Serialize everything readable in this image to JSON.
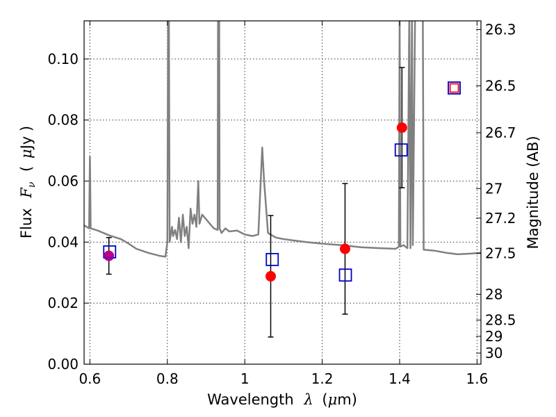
{
  "chart_data": {
    "type": "scatter",
    "xlabel_text": "Wavelength",
    "xlabel_symbol": "λ",
    "xlabel_unit_open": "(",
    "xlabel_unit_mu": "μ",
    "xlabel_unit_rest": "m)",
    "ylabel_text": "Flux",
    "ylabel_symbol": "F",
    "ylabel_subscript": "ν",
    "ylabel_unit_open": "(",
    "ylabel_unit_mu": "μ",
    "ylabel_unit_rest": "Jy )",
    "y2label": "Magnitude (AB)",
    "xlim": [
      0.585,
      1.61
    ],
    "ylim": [
      0.0,
      0.1125
    ],
    "grid": true,
    "x_ticks": [
      {
        "value": 0.6,
        "label": "0.6"
      },
      {
        "value": 0.8,
        "label": "0.8"
      },
      {
        "value": 1.0,
        "label": "1"
      },
      {
        "value": 1.2,
        "label": "1.2"
      },
      {
        "value": 1.4,
        "label": "1.4"
      },
      {
        "value": 1.6,
        "label": "1.6"
      }
    ],
    "y_ticks": [
      {
        "value": 0.0,
        "label": "0.00"
      },
      {
        "value": 0.02,
        "label": "0.02"
      },
      {
        "value": 0.04,
        "label": "0.04"
      },
      {
        "value": 0.06,
        "label": "0.06"
      },
      {
        "value": 0.08,
        "label": "0.08"
      },
      {
        "value": 0.1,
        "label": "0.10"
      }
    ],
    "y2_ticks": [
      {
        "value": 26.3,
        "label": "26.3"
      },
      {
        "value": 26.5,
        "label": "26.5"
      },
      {
        "value": 26.7,
        "label": "26.7"
      },
      {
        "value": 27.0,
        "label": "27"
      },
      {
        "value": 27.2,
        "label": "27.2"
      },
      {
        "value": 27.5,
        "label": "27.5"
      },
      {
        "value": 28.0,
        "label": "28"
      },
      {
        "value": 28.5,
        "label": "28.5"
      },
      {
        "value": 29.0,
        "label": "29"
      },
      {
        "value": 30.0,
        "label": "30"
      }
    ],
    "series": [
      {
        "kind": "observed",
        "marker": "circle",
        "color": "#ff0000",
        "points": [
          {
            "x": 0.649,
            "y": 0.0355,
            "yerr": 0.006
          },
          {
            "x": 1.067,
            "y": 0.0288,
            "yerr": 0.0199
          },
          {
            "x": 1.259,
            "y": 0.0378,
            "yerr": 0.0214
          },
          {
            "x": 1.406,
            "y": 0.0775,
            "yerr": 0.0197
          }
        ]
      },
      {
        "kind": "model",
        "marker": "square",
        "color": "#0000cc",
        "points": [
          {
            "x": 0.651,
            "y": 0.0368
          },
          {
            "x": 1.071,
            "y": 0.0343
          },
          {
            "x": 1.26,
            "y": 0.0292
          },
          {
            "x": 1.404,
            "y": 0.0702
          },
          {
            "x": 1.541,
            "y": 0.0905
          }
        ]
      },
      {
        "kind": "upper_limit",
        "marker": "square",
        "color": "#ff0000",
        "points": [
          {
            "x": 1.541,
            "y": 0.0905
          }
        ]
      },
      {
        "kind": "template_spectrum",
        "marker": "line",
        "color": "#808080",
        "points": [
          [
            0.585,
            0.0455
          ],
          [
            0.598,
            0.0445
          ],
          [
            0.6,
            0.068
          ],
          [
            0.602,
            0.0445
          ],
          [
            0.62,
            0.0438
          ],
          [
            0.65,
            0.0422
          ],
          [
            0.68,
            0.041
          ],
          [
            0.7,
            0.0395
          ],
          [
            0.72,
            0.0378
          ],
          [
            0.75,
            0.0365
          ],
          [
            0.78,
            0.0355
          ],
          [
            0.795,
            0.0352
          ],
          [
            0.8,
            0.04
          ],
          [
            0.802,
            0.115
          ],
          [
            0.804,
            0.115
          ],
          [
            0.806,
            0.04
          ],
          [
            0.812,
            0.045
          ],
          [
            0.815,
            0.042
          ],
          [
            0.82,
            0.044
          ],
          [
            0.825,
            0.041
          ],
          [
            0.83,
            0.048
          ],
          [
            0.835,
            0.04
          ],
          [
            0.84,
            0.049
          ],
          [
            0.845,
            0.042
          ],
          [
            0.85,
            0.045
          ],
          [
            0.855,
            0.038
          ],
          [
            0.86,
            0.051
          ],
          [
            0.865,
            0.046
          ],
          [
            0.87,
            0.049
          ],
          [
            0.875,
            0.045
          ],
          [
            0.88,
            0.06
          ],
          [
            0.883,
            0.046
          ],
          [
            0.89,
            0.049
          ],
          [
            0.9,
            0.0475
          ],
          [
            0.91,
            0.046
          ],
          [
            0.92,
            0.0445
          ],
          [
            0.93,
            0.044
          ],
          [
            0.931,
            0.115
          ],
          [
            0.934,
            0.115
          ],
          [
            0.935,
            0.0445
          ],
          [
            0.94,
            0.043
          ],
          [
            0.95,
            0.0445
          ],
          [
            0.96,
            0.0435
          ],
          [
            0.98,
            0.0438
          ],
          [
            1.0,
            0.0425
          ],
          [
            1.02,
            0.042
          ],
          [
            1.035,
            0.0425
          ],
          [
            1.045,
            0.071
          ],
          [
            1.05,
            0.06
          ],
          [
            1.06,
            0.043
          ],
          [
            1.08,
            0.0415
          ],
          [
            1.1,
            0.041
          ],
          [
            1.13,
            0.0405
          ],
          [
            1.16,
            0.04
          ],
          [
            1.2,
            0.0395
          ],
          [
            1.25,
            0.039
          ],
          [
            1.3,
            0.0383
          ],
          [
            1.35,
            0.038
          ],
          [
            1.39,
            0.0378
          ],
          [
            1.398,
            0.0385
          ],
          [
            1.4,
            0.115
          ],
          [
            1.402,
            0.0385
          ],
          [
            1.41,
            0.039
          ],
          [
            1.42,
            0.038
          ],
          [
            1.425,
            0.115
          ],
          [
            1.428,
            0.038
          ],
          [
            1.432,
            0.115
          ],
          [
            1.434,
            0.039
          ],
          [
            1.44,
            0.115
          ],
          [
            1.46,
            0.115
          ],
          [
            1.462,
            0.0375
          ],
          [
            1.49,
            0.0372
          ],
          [
            1.52,
            0.0365
          ],
          [
            1.55,
            0.036
          ],
          [
            1.58,
            0.0362
          ],
          [
            1.61,
            0.0365
          ]
        ]
      }
    ]
  }
}
